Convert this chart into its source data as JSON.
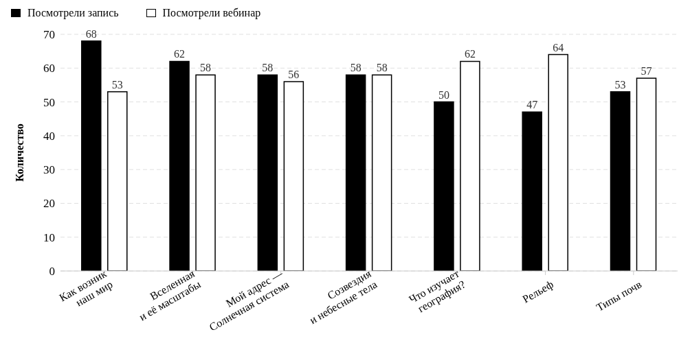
{
  "chart_data": {
    "type": "bar",
    "ylabel": "Количество",
    "categories": [
      "Как возник\nнаш мир",
      "Вселенная\nи её масштабы",
      "Мой адрес —\nСолнечная система",
      "Созвездия\nи небесные тела",
      "Что изучает\nгеография?",
      "Рельеф",
      "Типы почв"
    ],
    "series": [
      {
        "name": "Посмотрели запись",
        "color": "#000000",
        "values": [
          68,
          62,
          58,
          58,
          50,
          47,
          53
        ]
      },
      {
        "name": "Посмотрели вебинар",
        "color": "#ffffff",
        "values": [
          53,
          58,
          56,
          58,
          62,
          64,
          57
        ]
      }
    ],
    "ylim": [
      0,
      70
    ],
    "yticks": [
      0,
      10,
      20,
      30,
      40,
      50,
      60,
      70
    ],
    "grid": "y",
    "legend": "top left",
    "data_labels": true
  }
}
